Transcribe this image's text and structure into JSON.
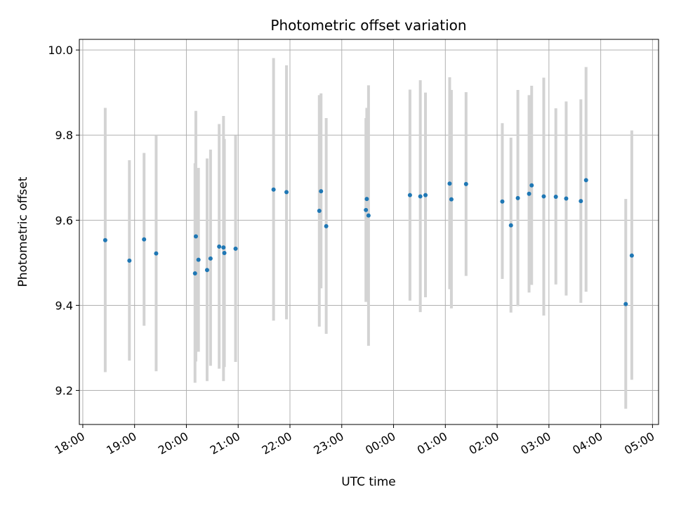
{
  "chart_data": {
    "type": "scatter",
    "title": "Photometric offset variation",
    "xlabel": "UTC time",
    "ylabel": "Photometric offset",
    "x_ticks": [
      "18:00",
      "19:00",
      "20:00",
      "21:00",
      "22:00",
      "23:00",
      "00:00",
      "01:00",
      "02:00",
      "03:00",
      "04:00",
      "05:00"
    ],
    "y_ticks": [
      "9.2",
      "9.4",
      "9.6",
      "9.8",
      "10.0"
    ],
    "xlim": [
      "17:56",
      "05:07"
    ],
    "ylim": [
      9.12,
      10.025
    ],
    "grid": true,
    "colors": {
      "point": "#1f77b4",
      "errorbar": "#d3d3d3",
      "grid": "#b0b0b0"
    },
    "points": [
      {
        "x": "18:26",
        "y": 9.553,
        "ylow": 9.243,
        "yhigh": 9.864
      },
      {
        "x": "18:54",
        "y": 9.505,
        "ylow": 9.27,
        "yhigh": 9.741
      },
      {
        "x": "19:11",
        "y": 9.555,
        "ylow": 9.352,
        "yhigh": 9.758
      },
      {
        "x": "19:25",
        "y": 9.522,
        "ylow": 9.245,
        "yhigh": 9.8
      },
      {
        "x": "20:10",
        "y": 9.475,
        "ylow": 9.218,
        "yhigh": 9.734
      },
      {
        "x": "20:11",
        "y": 9.562,
        "ylow": 9.268,
        "yhigh": 9.857
      },
      {
        "x": "20:14",
        "y": 9.507,
        "ylow": 9.291,
        "yhigh": 9.723
      },
      {
        "x": "20:24",
        "y": 9.483,
        "ylow": 9.222,
        "yhigh": 9.745
      },
      {
        "x": "20:28",
        "y": 9.51,
        "ylow": 9.258,
        "yhigh": 9.766
      },
      {
        "x": "20:38",
        "y": 9.538,
        "ylow": 9.251,
        "yhigh": 9.826
      },
      {
        "x": "20:43",
        "y": 9.536,
        "ylow": 9.222,
        "yhigh": 9.845
      },
      {
        "x": "20:44",
        "y": 9.523,
        "ylow": 9.255,
        "yhigh": 9.791
      },
      {
        "x": "20:57",
        "y": 9.533,
        "ylow": 9.267,
        "yhigh": 9.799
      },
      {
        "x": "21:41",
        "y": 9.672,
        "ylow": 9.364,
        "yhigh": 9.981
      },
      {
        "x": "21:56",
        "y": 9.666,
        "ylow": 9.367,
        "yhigh": 9.964
      },
      {
        "x": "22:34",
        "y": 9.622,
        "ylow": 9.35,
        "yhigh": 9.894
      },
      {
        "x": "22:36",
        "y": 9.668,
        "ylow": 9.44,
        "yhigh": 9.898
      },
      {
        "x": "22:42",
        "y": 9.586,
        "ylow": 9.333,
        "yhigh": 9.84
      },
      {
        "x": "23:28",
        "y": 9.624,
        "ylow": 9.408,
        "yhigh": 9.84
      },
      {
        "x": "23:29",
        "y": 9.65,
        "ylow": 9.434,
        "yhigh": 9.864
      },
      {
        "x": "23:31",
        "y": 9.611,
        "ylow": 9.305,
        "yhigh": 9.917
      },
      {
        "x": "00:19",
        "y": 9.659,
        "ylow": 9.411,
        "yhigh": 9.907
      },
      {
        "x": "00:31",
        "y": 9.656,
        "ylow": 9.384,
        "yhigh": 9.929
      },
      {
        "x": "00:37",
        "y": 9.659,
        "ylow": 9.419,
        "yhigh": 9.9
      },
      {
        "x": "01:05",
        "y": 9.686,
        "ylow": 9.438,
        "yhigh": 9.936
      },
      {
        "x": "01:07",
        "y": 9.649,
        "ylow": 9.393,
        "yhigh": 9.906
      },
      {
        "x": "01:24",
        "y": 9.685,
        "ylow": 9.469,
        "yhigh": 9.901
      },
      {
        "x": "02:06",
        "y": 9.644,
        "ylow": 9.462,
        "yhigh": 9.828
      },
      {
        "x": "02:16",
        "y": 9.588,
        "ylow": 9.383,
        "yhigh": 9.794
      },
      {
        "x": "02:24",
        "y": 9.652,
        "ylow": 9.398,
        "yhigh": 9.906
      },
      {
        "x": "02:37",
        "y": 9.662,
        "ylow": 9.43,
        "yhigh": 9.894
      },
      {
        "x": "02:40",
        "y": 9.682,
        "ylow": 9.448,
        "yhigh": 9.916
      },
      {
        "x": "02:54",
        "y": 9.656,
        "ylow": 9.376,
        "yhigh": 9.935
      },
      {
        "x": "03:08",
        "y": 9.655,
        "ylow": 9.449,
        "yhigh": 9.863
      },
      {
        "x": "03:20",
        "y": 9.651,
        "ylow": 9.423,
        "yhigh": 9.879
      },
      {
        "x": "03:37",
        "y": 9.645,
        "ylow": 9.406,
        "yhigh": 9.884
      },
      {
        "x": "03:43",
        "y": 9.694,
        "ylow": 9.432,
        "yhigh": 9.96
      },
      {
        "x": "04:29",
        "y": 9.403,
        "ylow": 9.157,
        "yhigh": 9.65
      },
      {
        "x": "04:36",
        "y": 9.517,
        "ylow": 9.225,
        "yhigh": 9.811
      }
    ]
  }
}
